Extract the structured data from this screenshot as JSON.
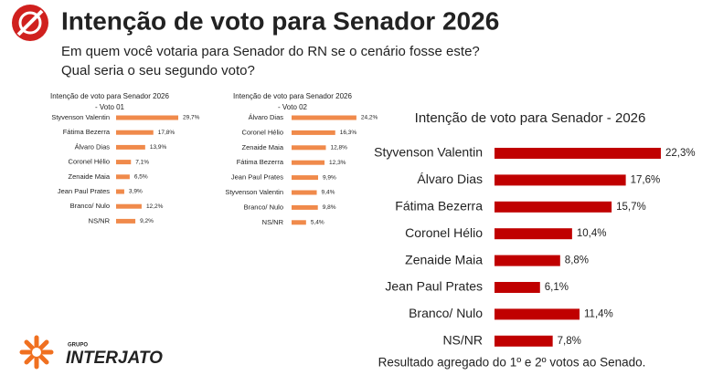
{
  "header": {
    "title": "Intenção de voto para Senador 2026",
    "question_1": "Em quem você votaria para Senador do RN se o cenário fosse este?",
    "question_2": "Qual seria o seu segundo voto?"
  },
  "logo": {
    "group": "GRUPO",
    "name": "INTERJATO"
  },
  "chart_data": [
    {
      "type": "bar",
      "title": "Intenção de voto para Senador 2026",
      "subtitle": "- Voto 01",
      "color": "#f08a4b",
      "categories": [
        "Styvenson Valentin",
        "Fátima Bezerra",
        "Álvaro Dias",
        "Coronel Hélio",
        "Zenaide Maia",
        "Jean Paul Prates",
        "Branco/ Nulo",
        "NS/NR"
      ],
      "values": [
        29.7,
        17.8,
        13.9,
        7.1,
        6.5,
        3.9,
        12.2,
        9.2
      ],
      "value_labels": [
        "29,7%",
        "17,8%",
        "13,9%",
        "7,1%",
        "6,5%",
        "3,9%",
        "12,2%",
        "9,2%"
      ]
    },
    {
      "type": "bar",
      "title": "Intenção de voto para Senador 2026",
      "subtitle": "- Voto 02",
      "color": "#f08a4b",
      "categories": [
        "Álvaro Dias",
        "Coronel Hélio",
        "Zenaide Maia",
        "Fátima Bezerra",
        "Jean Paul Prates",
        "Styvenson Valentin",
        "Branco/ Nulo",
        "NS/NR"
      ],
      "values": [
        24.2,
        16.3,
        12.8,
        12.3,
        9.9,
        9.4,
        9.8,
        5.4
      ],
      "value_labels": [
        "24,2%",
        "16,3%",
        "12,8%",
        "12,3%",
        "9,9%",
        "9,4%",
        "9,8%",
        "5,4%"
      ]
    },
    {
      "type": "bar",
      "title": "Intenção de voto para Senador - 2026",
      "note": "Resultado agregado do 1º e 2º votos ao Senado.",
      "color": "#c00000",
      "categories": [
        "Styvenson Valentin",
        "Álvaro Dias",
        "Fátima Bezerra",
        "Coronel Hélio",
        "Zenaide Maia",
        "Jean Paul Prates",
        "Branco/ Nulo",
        "NS/NR"
      ],
      "values": [
        22.3,
        17.6,
        15.7,
        10.4,
        8.8,
        6.1,
        11.4,
        7.8
      ],
      "value_labels": [
        "22,3%",
        "17,6%",
        "15,7%",
        "10,4%",
        "8,8%",
        "6,1%",
        "11,4%",
        "7,8%"
      ]
    }
  ]
}
